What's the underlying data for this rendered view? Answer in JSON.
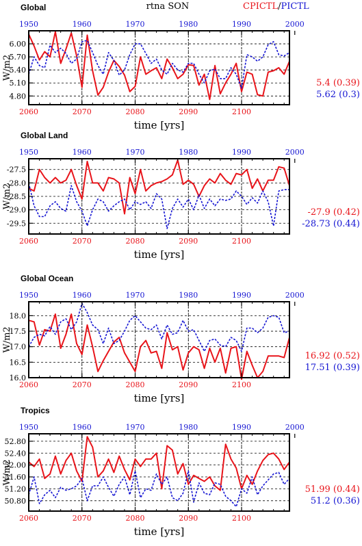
{
  "figure": {
    "center_title": "rtna SON",
    "legend_red": "CPICTL",
    "legend_sep": "/",
    "legend_blue": "PICTL",
    "colors": {
      "red": "#e8141a",
      "blue": "#1414d2",
      "black": "#000000"
    }
  },
  "chart_data": [
    {
      "type": "line",
      "title": "Global",
      "xlabel": "time [yrs]",
      "ylabel": "W/m2",
      "x_bottom_ticks": [
        "2060",
        "2070",
        "2080",
        "2090",
        "2100"
      ],
      "x_top_ticks": [
        "1950",
        "1960",
        "1970",
        "1980",
        "1990",
        "2000"
      ],
      "y_ticks": [
        "6.00",
        "5.70",
        "5.40",
        "5.10",
        "4.80"
      ],
      "xlim_bottom": [
        2060,
        2109
      ],
      "xlim_top": [
        1950,
        1999
      ],
      "ylim": [
        4.6,
        6.3
      ],
      "grid": true,
      "series": [
        {
          "name": "CPICTL",
          "style": "solid",
          "color": "#e8141a",
          "x_axis": "bottom",
          "x_start": 2060,
          "values": [
            6.22,
            5.95,
            5.63,
            5.82,
            5.7,
            6.28,
            5.55,
            5.88,
            6.25,
            5.72,
            5.0,
            6.2,
            5.38,
            4.82,
            5.0,
            5.35,
            5.62,
            5.48,
            5.28,
            4.9,
            5.02,
            5.7,
            5.3,
            5.38,
            5.45,
            5.2,
            5.65,
            5.45,
            5.2,
            5.3,
            5.52,
            5.5,
            5.05,
            5.3,
            4.72,
            5.5,
            4.85,
            5.1,
            5.3,
            5.55,
            4.9,
            5.35,
            5.3,
            4.83,
            4.8,
            5.35,
            5.38,
            5.45,
            5.3,
            5.6
          ]
        },
        {
          "name": "PICTL",
          "style": "dashed",
          "color": "#1414d2",
          "x_axis": "top",
          "x_start": 1950,
          "values": [
            5.3,
            5.7,
            5.5,
            5.45,
            5.97,
            5.8,
            5.9,
            5.78,
            5.55,
            5.65,
            6.05,
            6.08,
            5.8,
            5.5,
            5.3,
            5.8,
            5.62,
            5.28,
            5.4,
            5.75,
            6.0,
            6.0,
            5.78,
            5.55,
            5.65,
            5.4,
            5.3,
            5.55,
            5.4,
            5.35,
            5.55,
            5.55,
            5.3,
            5.1,
            5.38,
            5.42,
            5.2,
            5.2,
            5.45,
            5.3,
            4.98,
            5.75,
            5.7,
            5.6,
            5.7,
            5.98,
            6.05,
            5.75,
            5.72,
            5.8
          ]
        }
      ],
      "stats": [
        {
          "series": "CPICTL",
          "label": "5.4 (0.39)"
        },
        {
          "series": "PICTL",
          "label": "5.62 (0.3)"
        }
      ]
    },
    {
      "type": "line",
      "title": "Global Land",
      "xlabel": "time [yrs]",
      "ylabel": "W/m2",
      "x_bottom_ticks": [
        "2060",
        "2070",
        "2080",
        "2090",
        "2100"
      ],
      "x_top_ticks": [
        "1950",
        "1960",
        "1970",
        "1980",
        "1990",
        "2000"
      ],
      "y_ticks": [
        "-27.5",
        "-28.0",
        "-28.5",
        "-29.0",
        "-29.5"
      ],
      "xlim_bottom": [
        2060,
        2109
      ],
      "xlim_top": [
        1950,
        1999
      ],
      "ylim": [
        -29.9,
        -27.1
      ],
      "grid": true,
      "series": [
        {
          "name": "CPICTL",
          "style": "solid",
          "color": "#e8141a",
          "x_axis": "bottom",
          "x_start": 2060,
          "values": [
            -28.2,
            -28.3,
            -27.5,
            -27.8,
            -28.0,
            -27.8,
            -28.0,
            -27.9,
            -27.5,
            -28.1,
            -28.6,
            -27.2,
            -28.0,
            -28.0,
            -28.3,
            -27.8,
            -27.85,
            -28.0,
            -29.15,
            -27.8,
            -28.4,
            -27.5,
            -28.3,
            -28.1,
            -28.0,
            -27.95,
            -27.85,
            -27.7,
            -27.15,
            -28.05,
            -27.9,
            -28.05,
            -28.5,
            -28.1,
            -27.85,
            -28.0,
            -27.65,
            -27.9,
            -28.05,
            -27.65,
            -27.7,
            -27.5,
            -28.2,
            -27.85,
            -28.3,
            -27.9,
            -27.9,
            -27.4,
            -27.45,
            -28.1
          ]
        },
        {
          "name": "PICTL",
          "style": "dashed",
          "color": "#1414d2",
          "x_axis": "top",
          "x_start": 1950,
          "values": [
            -28.0,
            -28.85,
            -29.25,
            -29.25,
            -28.85,
            -28.7,
            -28.95,
            -29.05,
            -28.1,
            -28.7,
            -29.05,
            -29.6,
            -29.0,
            -28.6,
            -28.7,
            -29.05,
            -28.85,
            -28.7,
            -28.6,
            -29.0,
            -28.7,
            -28.8,
            -28.7,
            -28.95,
            -28.4,
            -28.6,
            -29.7,
            -28.95,
            -28.6,
            -28.9,
            -28.6,
            -29.0,
            -28.45,
            -28.95,
            -28.6,
            -28.85,
            -28.6,
            -28.65,
            -28.6,
            -28.3,
            -28.5,
            -28.8,
            -28.55,
            -28.75,
            -28.3,
            -28.7,
            -29.6,
            -28.3,
            -28.25,
            -28.25
          ]
        }
      ],
      "stats": [
        {
          "series": "CPICTL",
          "label": "-27.9 (0.42)"
        },
        {
          "series": "PICTL",
          "label": "-28.73 (0.44)"
        }
      ]
    },
    {
      "type": "line",
      "title": "Global Ocean",
      "xlabel": "time [yrs]",
      "ylabel": "W/m2",
      "x_bottom_ticks": [
        "2060",
        "2070",
        "2080",
        "2090",
        "2100"
      ],
      "x_top_ticks": [
        "1950",
        "1960",
        "1970",
        "1980",
        "1990",
        "2000"
      ],
      "y_ticks": [
        "18.0",
        "17.5",
        "17.0",
        "16.5",
        "16.0"
      ],
      "xlim_bottom": [
        2060,
        2109
      ],
      "xlim_top": [
        1950,
        1999
      ],
      "ylim": [
        16.0,
        18.45
      ],
      "grid": true,
      "series": [
        {
          "name": "CPICTL",
          "style": "solid",
          "color": "#e8141a",
          "x_axis": "bottom",
          "x_start": 2060,
          "values": [
            17.85,
            17.8,
            17.05,
            17.55,
            17.5,
            18.05,
            16.95,
            17.4,
            18.05,
            17.1,
            16.75,
            17.7,
            17.0,
            16.2,
            16.55,
            16.85,
            17.15,
            17.3,
            16.8,
            16.5,
            16.2,
            17.0,
            17.2,
            16.8,
            16.85,
            16.3,
            17.45,
            16.9,
            17.0,
            16.25,
            16.8,
            17.0,
            16.9,
            16.3,
            16.95,
            16.5,
            16.95,
            16.15,
            16.95,
            17.0,
            15.95,
            16.85,
            16.4,
            16.0,
            16.2,
            16.7,
            16.7,
            16.7,
            16.65,
            17.3
          ]
        },
        {
          "name": "PICTL",
          "style": "dashed",
          "color": "#1414d2",
          "x_axis": "top",
          "x_start": 1950,
          "values": [
            17.0,
            17.3,
            17.4,
            17.35,
            17.65,
            17.4,
            17.8,
            17.9,
            17.55,
            17.8,
            18.4,
            18.1,
            17.7,
            17.55,
            17.1,
            17.6,
            17.1,
            17.2,
            17.5,
            17.85,
            18.0,
            17.8,
            17.6,
            17.55,
            17.7,
            17.25,
            17.7,
            17.4,
            17.45,
            17.85,
            17.5,
            17.55,
            17.2,
            16.85,
            17.2,
            17.25,
            17.05,
            17.0,
            17.3,
            17.2,
            16.85,
            17.6,
            17.6,
            17.45,
            17.6,
            17.95,
            18.0,
            17.95,
            17.45,
            17.5
          ]
        }
      ],
      "stats": [
        {
          "series": "CPICTL",
          "label": "16.92 (0.52)"
        },
        {
          "series": "PICTL",
          "label": "17.51 (0.39)"
        }
      ]
    },
    {
      "type": "line",
      "title": "Tropics",
      "xlabel": "time [yrs]",
      "ylabel": "W/m2",
      "x_bottom_ticks": [
        "2060",
        "2070",
        "2080",
        "2090",
        "2100"
      ],
      "x_top_ticks": [
        "1950",
        "1960",
        "1970",
        "1980",
        "1990",
        "2000"
      ],
      "y_ticks": [
        "52.80",
        "52.40",
        "52.00",
        "51.60",
        "51.20",
        "50.80"
      ],
      "xlim_bottom": [
        2060,
        2109
      ],
      "xlim_top": [
        1950,
        1999
      ],
      "ylim": [
        50.45,
        53.05
      ],
      "grid": true,
      "series": [
        {
          "name": "CPICTL",
          "style": "solid",
          "color": "#e8141a",
          "x_axis": "bottom",
          "x_start": 2060,
          "values": [
            52.1,
            51.95,
            52.2,
            51.55,
            51.7,
            52.3,
            51.7,
            52.15,
            52.4,
            51.8,
            51.45,
            52.95,
            52.6,
            51.6,
            51.8,
            52.2,
            51.75,
            52.3,
            51.85,
            51.5,
            52.2,
            51.95,
            52.2,
            52.2,
            52.4,
            51.2,
            52.65,
            52.5,
            51.7,
            52.05,
            51.35,
            51.65,
            51.55,
            51.45,
            51.6,
            51.3,
            51.15,
            52.7,
            52.2,
            51.9,
            51.2,
            51.65,
            51.35,
            51.8,
            52.15,
            52.35,
            52.4,
            52.2,
            51.85,
            52.1
          ]
        },
        {
          "name": "PICTL",
          "style": "dashed",
          "color": "#1414d2",
          "x_axis": "top",
          "x_start": 1950,
          "values": [
            51.0,
            51.6,
            50.7,
            51.0,
            51.15,
            50.9,
            51.25,
            51.15,
            51.2,
            51.3,
            51.55,
            50.8,
            51.3,
            51.3,
            51.6,
            51.25,
            50.95,
            51.35,
            51.6,
            51.0,
            51.8,
            50.9,
            51.2,
            51.15,
            51.7,
            51.35,
            51.6,
            50.9,
            50.8,
            51.05,
            51.8,
            50.75,
            51.4,
            51.05,
            51.0,
            51.4,
            51.35,
            50.95,
            50.8,
            50.6,
            51.2,
            51.05,
            51.6,
            51.0,
            51.3,
            51.5,
            51.7,
            51.75,
            51.35,
            51.55
          ]
        }
      ],
      "stats": [
        {
          "series": "CPICTL",
          "label": "51.99 (0.44)"
        },
        {
          "series": "PICTL",
          "label": "51.2 (0.36)"
        }
      ]
    }
  ]
}
